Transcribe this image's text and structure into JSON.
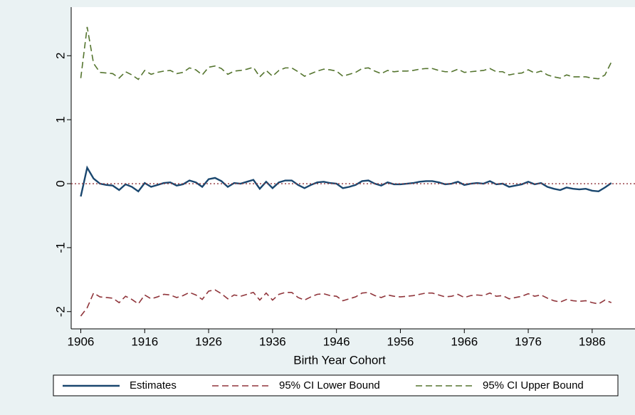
{
  "chart_data": {
    "type": "line",
    "x_label": "Birth Year Cohort",
    "x": [
      1906,
      1907,
      1908,
      1909,
      1910,
      1911,
      1912,
      1913,
      1914,
      1915,
      1916,
      1917,
      1918,
      1919,
      1920,
      1921,
      1922,
      1923,
      1924,
      1925,
      1926,
      1927,
      1928,
      1929,
      1930,
      1931,
      1932,
      1933,
      1934,
      1935,
      1936,
      1937,
      1938,
      1939,
      1940,
      1941,
      1942,
      1943,
      1944,
      1945,
      1946,
      1947,
      1948,
      1949,
      1950,
      1951,
      1952,
      1953,
      1954,
      1955,
      1956,
      1957,
      1958,
      1959,
      1960,
      1961,
      1962,
      1963,
      1964,
      1965,
      1966,
      1967,
      1968,
      1969,
      1970,
      1971,
      1972,
      1973,
      1974,
      1975,
      1976,
      1977,
      1978,
      1979,
      1980,
      1981,
      1982,
      1983,
      1984,
      1985,
      1986,
      1987,
      1988,
      1989
    ],
    "series": [
      {
        "name": "Estimates",
        "color": "#1a476f",
        "dash": false,
        "values": [
          -0.2,
          0.25,
          0.08,
          0,
          -0.02,
          -0.03,
          -0.1,
          -0.01,
          -0.05,
          -0.12,
          0.01,
          -0.05,
          -0.02,
          0.01,
          0.02,
          -0.03,
          -0.01,
          0.05,
          0.02,
          -0.05,
          0.07,
          0.09,
          0.04,
          -0.05,
          0.01,
          0,
          0.03,
          0.06,
          -0.08,
          0.03,
          -0.07,
          0.02,
          0.05,
          0.05,
          -0.02,
          -0.07,
          -0.02,
          0.02,
          0.03,
          0.01,
          0,
          -0.07,
          -0.05,
          -0.02,
          0.04,
          0.05,
          0,
          -0.03,
          0.02,
          -0.01,
          -0.01,
          0,
          0.01,
          0.03,
          0.04,
          0.04,
          0.02,
          -0.01,
          0,
          0.03,
          -0.02,
          0,
          0.01,
          0,
          0.04,
          -0.01,
          0,
          -0.05,
          -0.03,
          -0.01,
          0.03,
          -0.01,
          0.01,
          -0.05,
          -0.08,
          -0.1,
          -0.06,
          -0.08,
          -0.09,
          -0.08,
          -0.11,
          -0.12,
          -0.06,
          0.01
        ]
      },
      {
        "name": "95% CI Lower Bound",
        "color": "#90353b",
        "dash": true,
        "values": [
          -2.07,
          -1.94,
          -1.71,
          -1.77,
          -1.78,
          -1.79,
          -1.86,
          -1.76,
          -1.81,
          -1.88,
          -1.74,
          -1.8,
          -1.77,
          -1.73,
          -1.74,
          -1.78,
          -1.75,
          -1.7,
          -1.74,
          -1.81,
          -1.68,
          -1.66,
          -1.72,
          -1.8,
          -1.74,
          -1.76,
          -1.73,
          -1.7,
          -1.82,
          -1.71,
          -1.82,
          -1.73,
          -1.7,
          -1.7,
          -1.78,
          -1.82,
          -1.77,
          -1.73,
          -1.72,
          -1.75,
          -1.76,
          -1.83,
          -1.8,
          -1.77,
          -1.71,
          -1.7,
          -1.75,
          -1.78,
          -1.74,
          -1.76,
          -1.77,
          -1.76,
          -1.75,
          -1.73,
          -1.71,
          -1.71,
          -1.74,
          -1.77,
          -1.76,
          -1.73,
          -1.78,
          -1.75,
          -1.74,
          -1.75,
          -1.71,
          -1.76,
          -1.75,
          -1.8,
          -1.78,
          -1.76,
          -1.72,
          -1.76,
          -1.74,
          -1.79,
          -1.83,
          -1.85,
          -1.81,
          -1.83,
          -1.84,
          -1.83,
          -1.86,
          -1.88,
          -1.82,
          -1.86
        ]
      },
      {
        "name": "95% CI Upper Bound",
        "color": "#55752f",
        "dash": true,
        "values": [
          1.65,
          2.45,
          1.88,
          1.74,
          1.73,
          1.72,
          1.65,
          1.75,
          1.7,
          1.63,
          1.77,
          1.71,
          1.74,
          1.76,
          1.77,
          1.72,
          1.74,
          1.81,
          1.78,
          1.7,
          1.82,
          1.84,
          1.8,
          1.71,
          1.76,
          1.77,
          1.79,
          1.82,
          1.67,
          1.77,
          1.68,
          1.77,
          1.81,
          1.81,
          1.75,
          1.68,
          1.72,
          1.76,
          1.79,
          1.78,
          1.76,
          1.68,
          1.71,
          1.74,
          1.8,
          1.81,
          1.76,
          1.72,
          1.77,
          1.75,
          1.76,
          1.76,
          1.77,
          1.79,
          1.8,
          1.8,
          1.77,
          1.75,
          1.75,
          1.79,
          1.74,
          1.75,
          1.76,
          1.77,
          1.8,
          1.75,
          1.75,
          1.7,
          1.72,
          1.73,
          1.78,
          1.73,
          1.76,
          1.7,
          1.67,
          1.65,
          1.7,
          1.67,
          1.67,
          1.67,
          1.65,
          1.64,
          1.7,
          1.9
        ]
      }
    ],
    "xlim": [
      1904.5,
      1992.7
    ],
    "xticks": [
      1906,
      1916,
      1926,
      1936,
      1946,
      1956,
      1966,
      1976,
      1986
    ],
    "ylim": [
      -2.27,
      2.76
    ],
    "yticks": [
      -2,
      -1,
      0,
      1,
      2
    ],
    "yline": 0,
    "yline_color": "#90353b",
    "legend": "bottom"
  }
}
